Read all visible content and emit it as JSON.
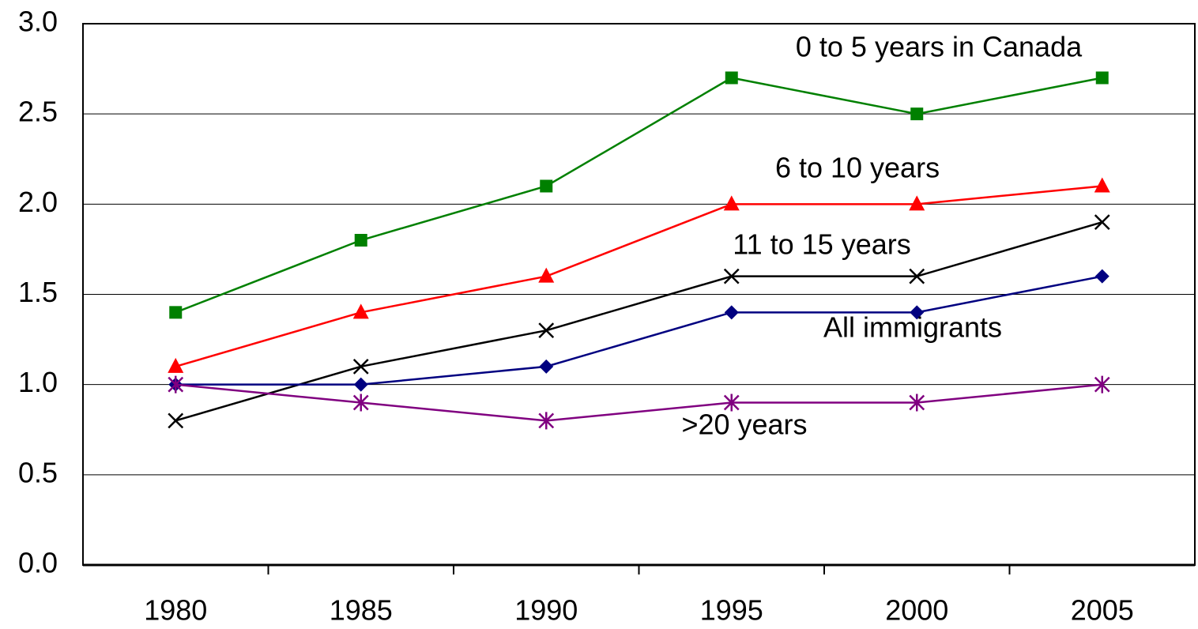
{
  "chart_data": {
    "type": "line",
    "categories": [
      "1980",
      "1985",
      "1990",
      "1995",
      "2000",
      "2005"
    ],
    "series": [
      {
        "name": "0 to 5 years in Canada",
        "color": "#008000",
        "marker": "square",
        "values": [
          1.4,
          1.8,
          2.1,
          2.7,
          2.5,
          2.7
        ]
      },
      {
        "name": "6 to 10 years",
        "color": "#ff0000",
        "marker": "triangle",
        "values": [
          1.1,
          1.4,
          1.6,
          2.0,
          2.0,
          2.1
        ]
      },
      {
        "name": "11 to 15 years",
        "color": "#000000",
        "marker": "x",
        "values": [
          0.8,
          1.1,
          1.3,
          1.6,
          1.6,
          1.9
        ]
      },
      {
        "name": "All immigrants",
        "color": "#000080",
        "marker": "diamond",
        "values": [
          1.0,
          1.0,
          1.1,
          1.4,
          1.4,
          1.6
        ]
      },
      {
        "name": ">20 years",
        "color": "#800080",
        "marker": "asterisk",
        "values": [
          1.0,
          0.9,
          0.8,
          0.9,
          0.9,
          1.0
        ]
      }
    ],
    "ylim": [
      0,
      3
    ],
    "yticks": [
      {
        "value": 0,
        "label": "0.0"
      },
      0.5,
      {
        "value": 1,
        "label": "1.0"
      },
      1.5,
      {
        "value": 2,
        "label": "2.0"
      },
      2.5,
      {
        "value": 3,
        "label": "3.0"
      }
    ],
    "grid": true
  }
}
